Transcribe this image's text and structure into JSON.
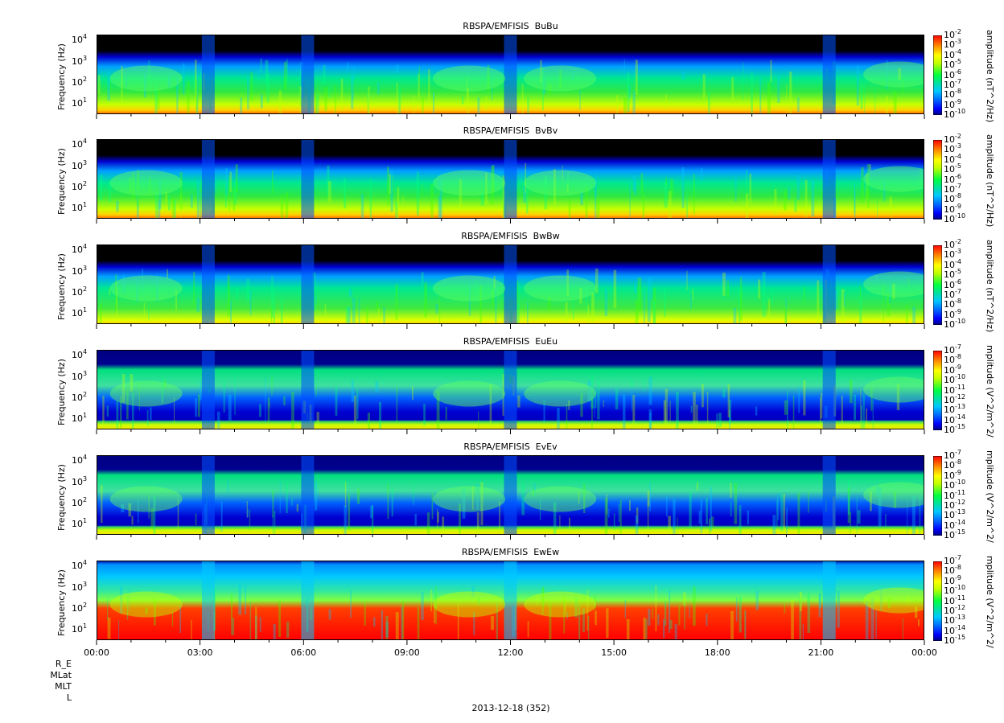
{
  "chart_data": {
    "type": "heatmap",
    "date_label": "2013-12-18 (352)",
    "x_tick_labels": [
      "00:00",
      "03:00",
      "06:00",
      "09:00",
      "12:00",
      "15:00",
      "18:00",
      "21:00",
      "00:00"
    ],
    "ephemeris_labels": [
      "R_E",
      "MLat",
      "MLT",
      "L"
    ],
    "panels": [
      {
        "title": "RBSPA/EMFISIS  BuBu",
        "ylabel": "Frequency (Hz)",
        "y_ticks": [
          "10",
          "10",
          "10",
          "10"
        ],
        "y_exps": [
          "1",
          "2",
          "3",
          "4"
        ],
        "colorbar_label": "amplitude (nT^2/Hz)",
        "cb_exps": [
          "-2",
          "-3",
          "-4",
          "-5",
          "-6",
          "-7",
          "-8",
          "-9",
          "-10"
        ],
        "kind": "B"
      },
      {
        "title": "RBSPA/EMFISIS  BvBv",
        "ylabel": "Frequency (Hz)",
        "y_ticks": [
          "10",
          "10",
          "10",
          "10"
        ],
        "y_exps": [
          "1",
          "2",
          "3",
          "4"
        ],
        "colorbar_label": "amplitude (nT^2/Hz)",
        "cb_exps": [
          "-2",
          "-3",
          "-4",
          "-5",
          "-6",
          "-7",
          "-8",
          "-9",
          "-10"
        ],
        "kind": "B"
      },
      {
        "title": "RBSPA/EMFISIS  BwBw",
        "ylabel": "Frequency (Hz)",
        "y_ticks": [
          "10",
          "10",
          "10",
          "10"
        ],
        "y_exps": [
          "1",
          "2",
          "3",
          "4"
        ],
        "colorbar_label": "amplitude (nT^2/Hz)",
        "cb_exps": [
          "-2",
          "-3",
          "-4",
          "-5",
          "-6",
          "-7",
          "-8",
          "-9",
          "-10"
        ],
        "kind": "Bw"
      },
      {
        "title": "RBSPA/EMFISIS  EuEu",
        "ylabel": "Frequency (Hz)",
        "y_ticks": [
          "10",
          "10",
          "10",
          "10"
        ],
        "y_exps": [
          "1",
          "2",
          "3",
          "4"
        ],
        "colorbar_label": "mplitude (V^2/m^2/",
        "cb_exps": [
          "-7",
          "-8",
          "-9",
          "-10",
          "-11",
          "-12",
          "-13",
          "-14",
          "-15"
        ],
        "kind": "E"
      },
      {
        "title": "RBSPA/EMFISIS  EvEv",
        "ylabel": "Frequency (Hz)",
        "y_ticks": [
          "10",
          "10",
          "10",
          "10"
        ],
        "y_exps": [
          "1",
          "2",
          "3",
          "4"
        ],
        "colorbar_label": "mplitude (V^2/m^2/",
        "cb_exps": [
          "-7",
          "-8",
          "-9",
          "-10",
          "-11",
          "-12",
          "-13",
          "-14",
          "-15"
        ],
        "kind": "E"
      },
      {
        "title": "RBSPA/EMFISIS  EwEw",
        "ylabel": "Frequency (Hz)",
        "y_ticks": [
          "10",
          "10",
          "10",
          "10"
        ],
        "y_exps": [
          "1",
          "2",
          "3",
          "4"
        ],
        "colorbar_label": "mplitude (V^2/m^2/",
        "cb_exps": [
          "-7",
          "-8",
          "-9",
          "-10",
          "-11",
          "-12",
          "-13",
          "-14",
          "-15"
        ],
        "kind": "Ew"
      }
    ],
    "x_range": [
      "00:00",
      "00:00"
    ],
    "y_scale": "log",
    "colormap": [
      "#000080",
      "#0000ff",
      "#0080ff",
      "#00c8ff",
      "#00ff80",
      "#40ff00",
      "#c0ff00",
      "#ffff00",
      "#ff8000",
      "#ff0000"
    ]
  }
}
